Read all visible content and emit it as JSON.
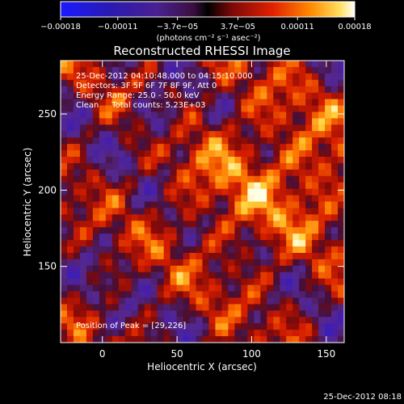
{
  "chart_data": {
    "type": "heatmap",
    "title": "Reconstructed RHESSI Image",
    "xlabel": "Heliocentric X (arcsec)",
    "ylabel": "Heliocentric Y (arcsec)",
    "xlim": [
      -28,
      162
    ],
    "ylim": [
      100,
      285
    ],
    "x_ticks": [
      0,
      50,
      100,
      150
    ],
    "y_ticks": [
      150,
      200,
      250
    ],
    "colorbar": {
      "label": "(photons cm⁻² s⁻¹ asec⁻²)",
      "range": [
        -0.00018,
        0.00018
      ],
      "ticks": [
        {
          "value": -0.00018,
          "label": "−0.00018"
        },
        {
          "value": -0.00011,
          "label": "−0.00011"
        },
        {
          "value": -3.7e-05,
          "label": "−3.7e−05"
        },
        {
          "value": 3.7e-05,
          "label": "3.7e−05"
        },
        {
          "value": 0.00011,
          "label": "0.00011"
        },
        {
          "value": 0.00018,
          "label": "0.00018"
        }
      ]
    },
    "info_lines": [
      "25-Dec-2012 04:10:48.000 to 04:15:10.000",
      "Detectors: 3F 5F 6F 7F 8F 9F, Att 0",
      "Energy Range: 25.0 - 50.0 keV",
      "Clean     Total counts: 5.23E+03"
    ],
    "peak_label": "Position of Peak = [29,226]",
    "peak_position": [
      29,
      226
    ],
    "grid": false
  },
  "footer": {
    "timestamp": "25-Dec-2012 08:18"
  }
}
